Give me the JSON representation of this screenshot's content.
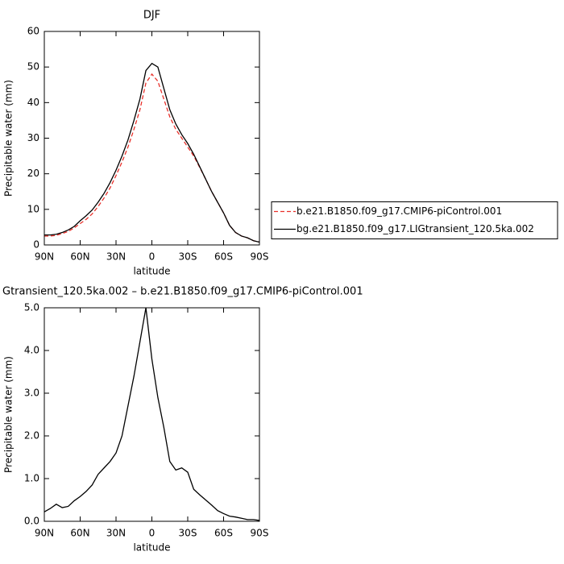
{
  "chart_data": [
    {
      "type": "line",
      "title": "DJF",
      "x_label": "latitude",
      "y_label": "Precipitable water (mm)",
      "x": [
        90,
        85,
        80,
        75,
        70,
        65,
        60,
        55,
        50,
        45,
        40,
        35,
        30,
        25,
        20,
        15,
        10,
        5,
        0,
        -5,
        -10,
        -15,
        -20,
        -25,
        -30,
        -35,
        -40,
        -45,
        -50,
        -55,
        -60,
        -65,
        -70,
        -75,
        -80,
        -85,
        -90
      ],
      "xlim": [
        90,
        -90
      ],
      "xticks": [
        {
          "value": 90,
          "label": "90N"
        },
        {
          "value": 60,
          "label": "60N"
        },
        {
          "value": 30,
          "label": "30N"
        },
        0,
        {
          "value": -30,
          "label": "30S"
        },
        {
          "value": -60,
          "label": "60S"
        },
        {
          "value": -90,
          "label": "90S"
        }
      ],
      "ylim": [
        0,
        60
      ],
      "yticks": [
        0,
        10,
        20,
        30,
        40,
        50,
        60
      ],
      "legend": "right",
      "series": [
        {
          "name": "b.e21.B1850.f09_g17.CMIP6-piControl.001",
          "color": "#e8302a",
          "line_style": "dashed",
          "values": [
            2.5,
            2.5,
            2.7,
            3.2,
            3.8,
            4.8,
            6,
            7.2,
            8.7,
            10.8,
            13.2,
            16,
            19.5,
            23.3,
            27.5,
            32.5,
            38,
            45.5,
            48,
            46,
            41,
            36,
            32.5,
            30,
            27.5,
            25,
            21.8,
            18.5,
            15,
            12,
            9,
            5.5,
            3.5,
            2.5,
            2.0,
            1.2,
            0.8
          ]
        },
        {
          "name": "bg.e21.B1850.f09_g17.LIGtransient_120.5ka.002",
          "color": "#000000",
          "line_style": "solid",
          "values": [
            2.8,
            2.8,
            3.0,
            3.5,
            4.2,
            5.2,
            6.8,
            8.2,
            9.8,
            12,
            14.5,
            17.5,
            21,
            25,
            29.5,
            35,
            41,
            49,
            51,
            50,
            44,
            38,
            34,
            31,
            28.5,
            25.5,
            22,
            18.5,
            15,
            12,
            9,
            5.5,
            3.5,
            2.5,
            2.0,
            1.2,
            0.8
          ]
        }
      ]
    },
    {
      "type": "line",
      "title": "Gtransient_120.5ka.002 – b.e21.B1850.f09_g17.CMIP6-piControl.001",
      "x_label": "latitude",
      "y_label": "Precipitable water (mm)",
      "x": [
        90,
        85,
        80,
        75,
        70,
        65,
        60,
        55,
        50,
        45,
        40,
        35,
        30,
        25,
        20,
        15,
        10,
        5,
        0,
        -5,
        -10,
        -15,
        -20,
        -25,
        -30,
        -35,
        -40,
        -45,
        -50,
        -55,
        -60,
        -65,
        -70,
        -75,
        -80,
        -85,
        -90
      ],
      "xlim": [
        90,
        -90
      ],
      "xticks": [
        {
          "value": 90,
          "label": "90N"
        },
        {
          "value": 60,
          "label": "60N"
        },
        {
          "value": 30,
          "label": "30N"
        },
        0,
        {
          "value": -30,
          "label": "30S"
        },
        {
          "value": -60,
          "label": "60S"
        },
        {
          "value": -90,
          "label": "90S"
        }
      ],
      "ylim": [
        0,
        5
      ],
      "yticks": [
        {
          "value": 0,
          "label": "0.0"
        },
        {
          "value": 1,
          "label": "1.0"
        },
        {
          "value": 2,
          "label": "2.0"
        },
        {
          "value": 3,
          "label": "3.0"
        },
        {
          "value": 4,
          "label": "4.0"
        },
        {
          "value": 5,
          "label": "5.0"
        }
      ],
      "series": [
        {
          "color": "#000000",
          "line_style": "solid",
          "values": [
            0.22,
            0.3,
            0.4,
            0.32,
            0.35,
            0.48,
            0.58,
            0.7,
            0.85,
            1.1,
            1.25,
            1.4,
            1.6,
            2.0,
            2.7,
            3.4,
            4.2,
            5.0,
            3.8,
            2.9,
            2.2,
            1.4,
            1.2,
            1.25,
            1.15,
            0.75,
            0.62,
            0.5,
            0.38,
            0.25,
            0.18,
            0.12,
            0.1,
            0.07,
            0.04,
            0.04,
            0.02
          ]
        }
      ]
    }
  ]
}
